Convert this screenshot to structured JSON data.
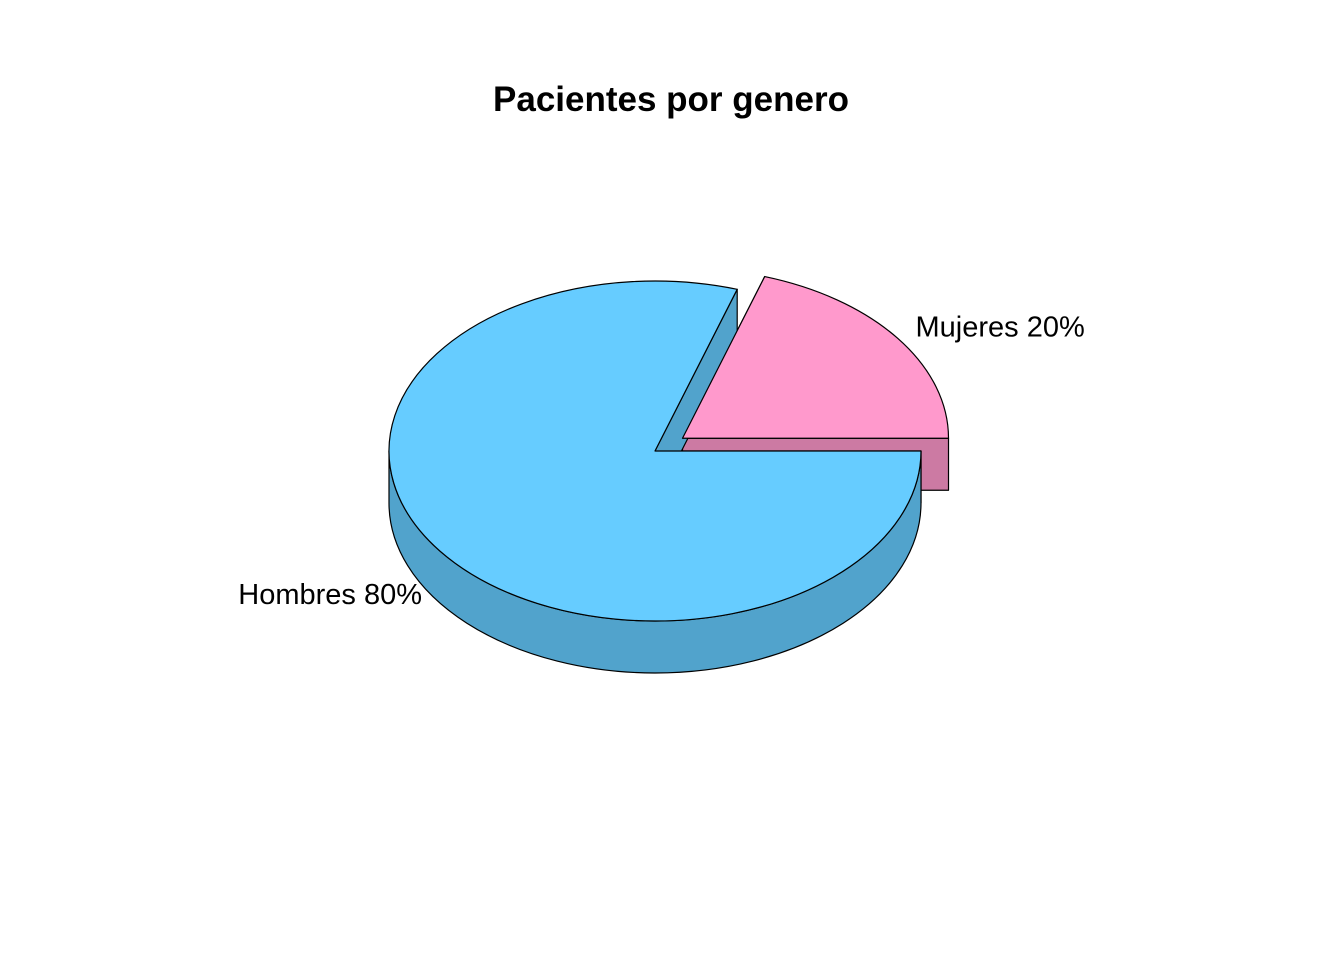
{
  "chart_data": {
    "type": "pie",
    "style": "3d-exploded",
    "title": "Pacientes por genero",
    "slices": [
      {
        "label": "Hombres 80%",
        "category": "Hombres",
        "value": 80,
        "top_color": "#66CCFF",
        "side_color": "#51A3CC",
        "exploded": false
      },
      {
        "label": "Mujeres 20%",
        "category": "Mujeres",
        "value": 20,
        "top_color": "#FF99CC",
        "side_color": "#CC7AA3",
        "exploded": true
      }
    ],
    "start_angle_deg": 0,
    "direction": "clockwise"
  }
}
